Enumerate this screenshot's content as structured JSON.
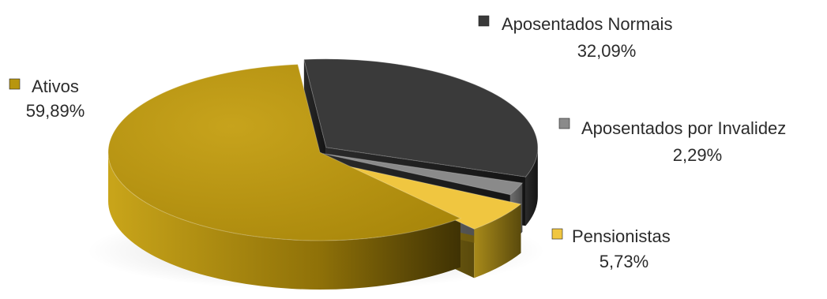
{
  "chart_data": {
    "type": "pie",
    "title": "",
    "style": "3d-exploded",
    "slices": [
      {
        "label": "Aposentados Normais",
        "value": 32.09,
        "value_text": "32,09%",
        "color": "#3a3a3a"
      },
      {
        "label": "Aposentados por Invalidez",
        "value": 2.29,
        "value_text": "2,29%",
        "color": "#8a8a8a"
      },
      {
        "label": "Pensionistas",
        "value": 5.73,
        "value_text": "5,73%",
        "color": "#f0c640"
      },
      {
        "label": "Ativos",
        "value": 59.89,
        "value_text": "59,89%",
        "color": "#b8960e"
      }
    ],
    "legend": "labels beside slices with square markers"
  }
}
